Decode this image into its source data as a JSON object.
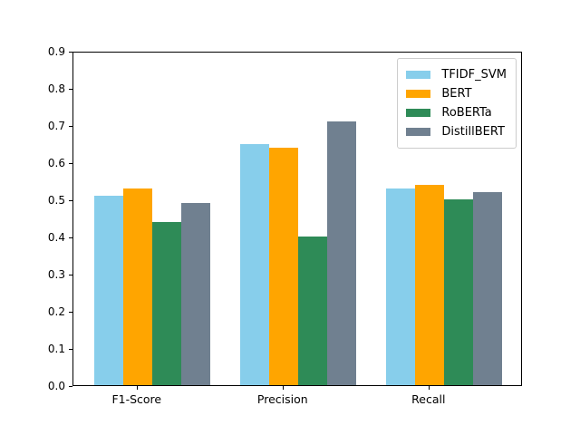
{
  "figure": {
    "background": "#ffffff",
    "spine_color": "#000000"
  },
  "chart_data": {
    "type": "bar",
    "title": "",
    "xlabel": "",
    "ylabel": "",
    "categories": [
      "F1-Score",
      "Precision",
      "Recall"
    ],
    "series": [
      {
        "name": "TFIDF_SVM",
        "color": "#87CEEB",
        "values": [
          0.51,
          0.65,
          0.53
        ]
      },
      {
        "name": "BERT",
        "color": "#FFA500",
        "values": [
          0.53,
          0.64,
          0.54
        ]
      },
      {
        "name": "RoBERTa",
        "color": "#2E8B57",
        "values": [
          0.44,
          0.4,
          0.5
        ]
      },
      {
        "name": "DistillBERT",
        "color": "#708090",
        "values": [
          0.49,
          0.71,
          0.52
        ]
      }
    ],
    "ylim": [
      0.0,
      0.9
    ],
    "yticks": [
      0.0,
      0.1,
      0.2,
      0.3,
      0.4,
      0.5,
      0.6,
      0.7,
      0.8,
      0.9
    ],
    "grid": false,
    "legend_position": "upper right"
  }
}
